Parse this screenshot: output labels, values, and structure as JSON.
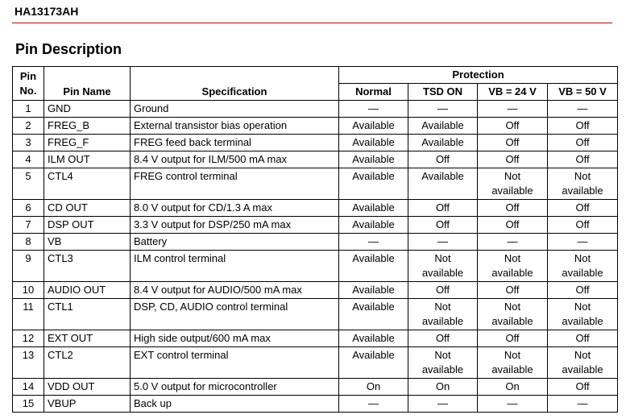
{
  "header": {
    "title": "HA13173AH"
  },
  "section_title": "Pin Description",
  "table": {
    "headers": {
      "pin_no": "Pin No.",
      "pin_name": "Pin Name",
      "specification": "Specification",
      "protection": "Protection",
      "protection_columns": [
        "Normal",
        "TSD ON",
        "VB = 24 V",
        "VB = 50 V"
      ]
    },
    "rows": [
      [
        "1",
        "GND",
        "Ground",
        "—",
        "—",
        "—",
        "—"
      ],
      [
        "2",
        "FREG_B",
        "External transistor bias operation",
        "Available",
        "Available",
        "Off",
        "Off"
      ],
      [
        "3",
        "FREG_F",
        "FREG feed back terminal",
        "Available",
        "Available",
        "Off",
        "Off"
      ],
      [
        "4",
        "ILM OUT",
        "8.4 V output for ILM/500 mA max",
        "Available",
        "Off",
        "Off",
        "Off"
      ],
      [
        "5",
        "CTL4",
        "FREG control terminal",
        "Available",
        "Available",
        "Not available",
        "Not available"
      ],
      [
        "6",
        "CD OUT",
        "8.0 V output for CD/1.3 A max",
        "Available",
        "Off",
        "Off",
        "Off"
      ],
      [
        "7",
        "DSP OUT",
        "3.3 V output for DSP/250 mA max",
        "Available",
        "Off",
        "Off",
        "Off"
      ],
      [
        "8",
        "VB",
        "Battery",
        "—",
        "—",
        "—",
        "—"
      ],
      [
        "9",
        "CTL3",
        "ILM control terminal",
        "Available",
        "Not available",
        "Not available",
        "Not available"
      ],
      [
        "10",
        "AUDIO OUT",
        "8.4 V output for AUDIO/500 mA max",
        "Available",
        "Off",
        "Off",
        "Off"
      ],
      [
        "11",
        "CTL1",
        "DSP, CD, AUDIO control terminal",
        "Available",
        "Not available",
        "Not available",
        "Not available"
      ],
      [
        "12",
        "EXT OUT",
        "High side output/600 mA max",
        "Available",
        "Off",
        "Off",
        "Off"
      ],
      [
        "13",
        "CTL2",
        "EXT control terminal",
        "Available",
        "Not available",
        "Not available",
        "Not available"
      ],
      [
        "14",
        "VDD OUT",
        "5.0 V output for microcontroller",
        "On",
        "On",
        "On",
        "Off"
      ],
      [
        "15",
        "VBUP",
        "Back up",
        "—",
        "—",
        "—",
        "—"
      ]
    ]
  }
}
